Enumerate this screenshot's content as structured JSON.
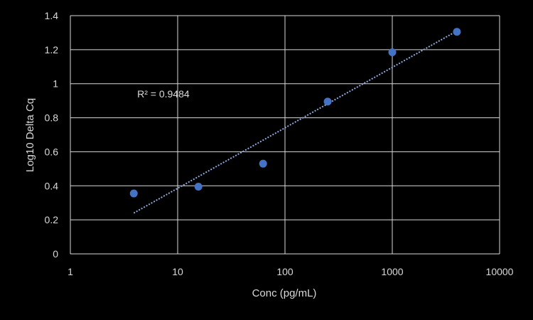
{
  "chart_data": {
    "type": "scatter",
    "title": "",
    "xlabel": "Conc (pg/mL)",
    "ylabel": "Log10 Delta Cq",
    "x_scale": "log",
    "xlim": [
      1,
      10000
    ],
    "ylim": [
      0,
      1.4
    ],
    "x_ticks": [
      1,
      10,
      100,
      1000,
      10000
    ],
    "x_tick_labels": [
      "1",
      "10",
      "100",
      "1000",
      "10000"
    ],
    "y_ticks": [
      0,
      0.2,
      0.4,
      0.6,
      0.8,
      1,
      1.2,
      1.4
    ],
    "y_tick_labels": [
      "0",
      "0.2",
      "0.4",
      "0.6",
      "0.8",
      "1",
      "1.2",
      "1.4"
    ],
    "grid": true,
    "series": [
      {
        "x": [
          3.9,
          15.6,
          62.5,
          250,
          1000,
          4000
        ],
        "y": [
          0.355,
          0.395,
          0.53,
          0.895,
          1.185,
          1.305
        ]
      }
    ],
    "trendline": {
      "type": "log-linear",
      "x": [
        3.9,
        4000
      ],
      "y": [
        0.24,
        1.31
      ]
    },
    "annotation": {
      "text": "R² = 0.9484",
      "x": 4.2,
      "y": 0.92
    },
    "colors": {
      "background": "#000000",
      "grid": "#d9d9d9",
      "text": "#d9d9d9",
      "marker": "#4472c4",
      "trendline": "#8faadc"
    }
  }
}
